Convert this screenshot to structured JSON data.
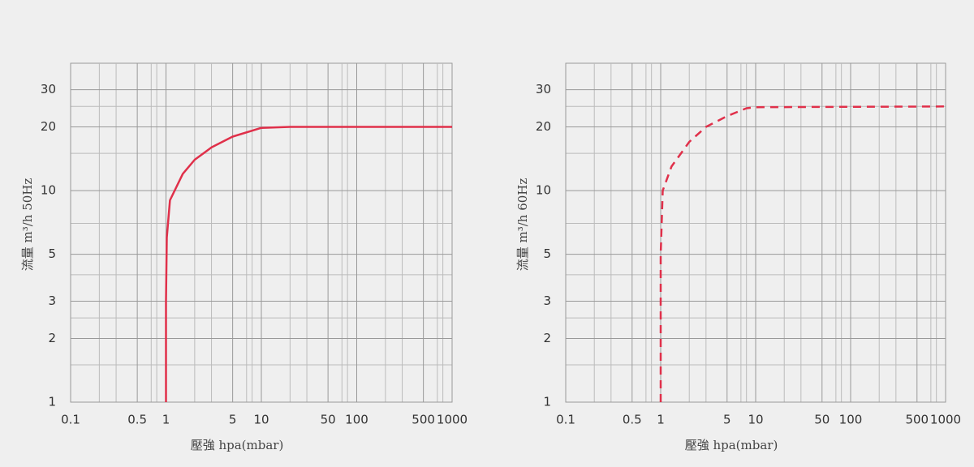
{
  "chart_data": [
    {
      "type": "line",
      "x_label": "壓強 hpa(mbar)",
      "y_label": "流量 m³/h 50Hz",
      "x": [
        1,
        1,
        1.02,
        1.1,
        1.5,
        2,
        3,
        5,
        10,
        20,
        1000
      ],
      "values": [
        1,
        3,
        6,
        9,
        12,
        14,
        16,
        18,
        19.8,
        20,
        20
      ],
      "color": "#e0304a",
      "line_style": "solid",
      "xscale": "log",
      "yscale": "log",
      "xlim": [
        0.1,
        1000
      ],
      "ylim": [
        1,
        40
      ],
      "xticks": [
        0.1,
        0.5,
        1,
        5,
        10,
        50,
        100,
        500,
        1000
      ],
      "yticks": [
        1,
        2,
        3,
        5,
        10,
        20,
        30
      ],
      "x_minor_grid": [
        0.2,
        0.3,
        0.7,
        0.8,
        2,
        3,
        7,
        8,
        20,
        30,
        70,
        80,
        200,
        300,
        700,
        800
      ],
      "y_minor_grid": [
        1.5,
        2.5,
        4,
        7,
        15,
        25
      ],
      "grid": true
    },
    {
      "type": "line",
      "x_label": "壓強 hpa(mbar)",
      "y_label": "流量 m³/h 60Hz",
      "x": [
        1,
        1,
        1.05,
        1.3,
        2,
        3,
        5,
        8,
        10,
        1000
      ],
      "values": [
        1,
        5,
        10,
        13,
        17,
        20,
        22.5,
        24.5,
        24.8,
        25
      ],
      "color": "#e0304a",
      "line_style": "dashed",
      "xscale": "log",
      "yscale": "log",
      "xlim": [
        0.1,
        1000
      ],
      "ylim": [
        1,
        40
      ],
      "xticks": [
        0.1,
        0.5,
        1,
        5,
        10,
        50,
        100,
        500,
        1000
      ],
      "yticks": [
        1,
        2,
        3,
        5,
        10,
        20,
        30
      ],
      "x_minor_grid": [
        0.2,
        0.3,
        0.7,
        0.8,
        2,
        3,
        7,
        8,
        20,
        30,
        70,
        80,
        200,
        300,
        700,
        800
      ],
      "y_minor_grid": [
        1.5,
        2.5,
        4,
        7,
        15,
        25
      ],
      "grid": true
    }
  ]
}
